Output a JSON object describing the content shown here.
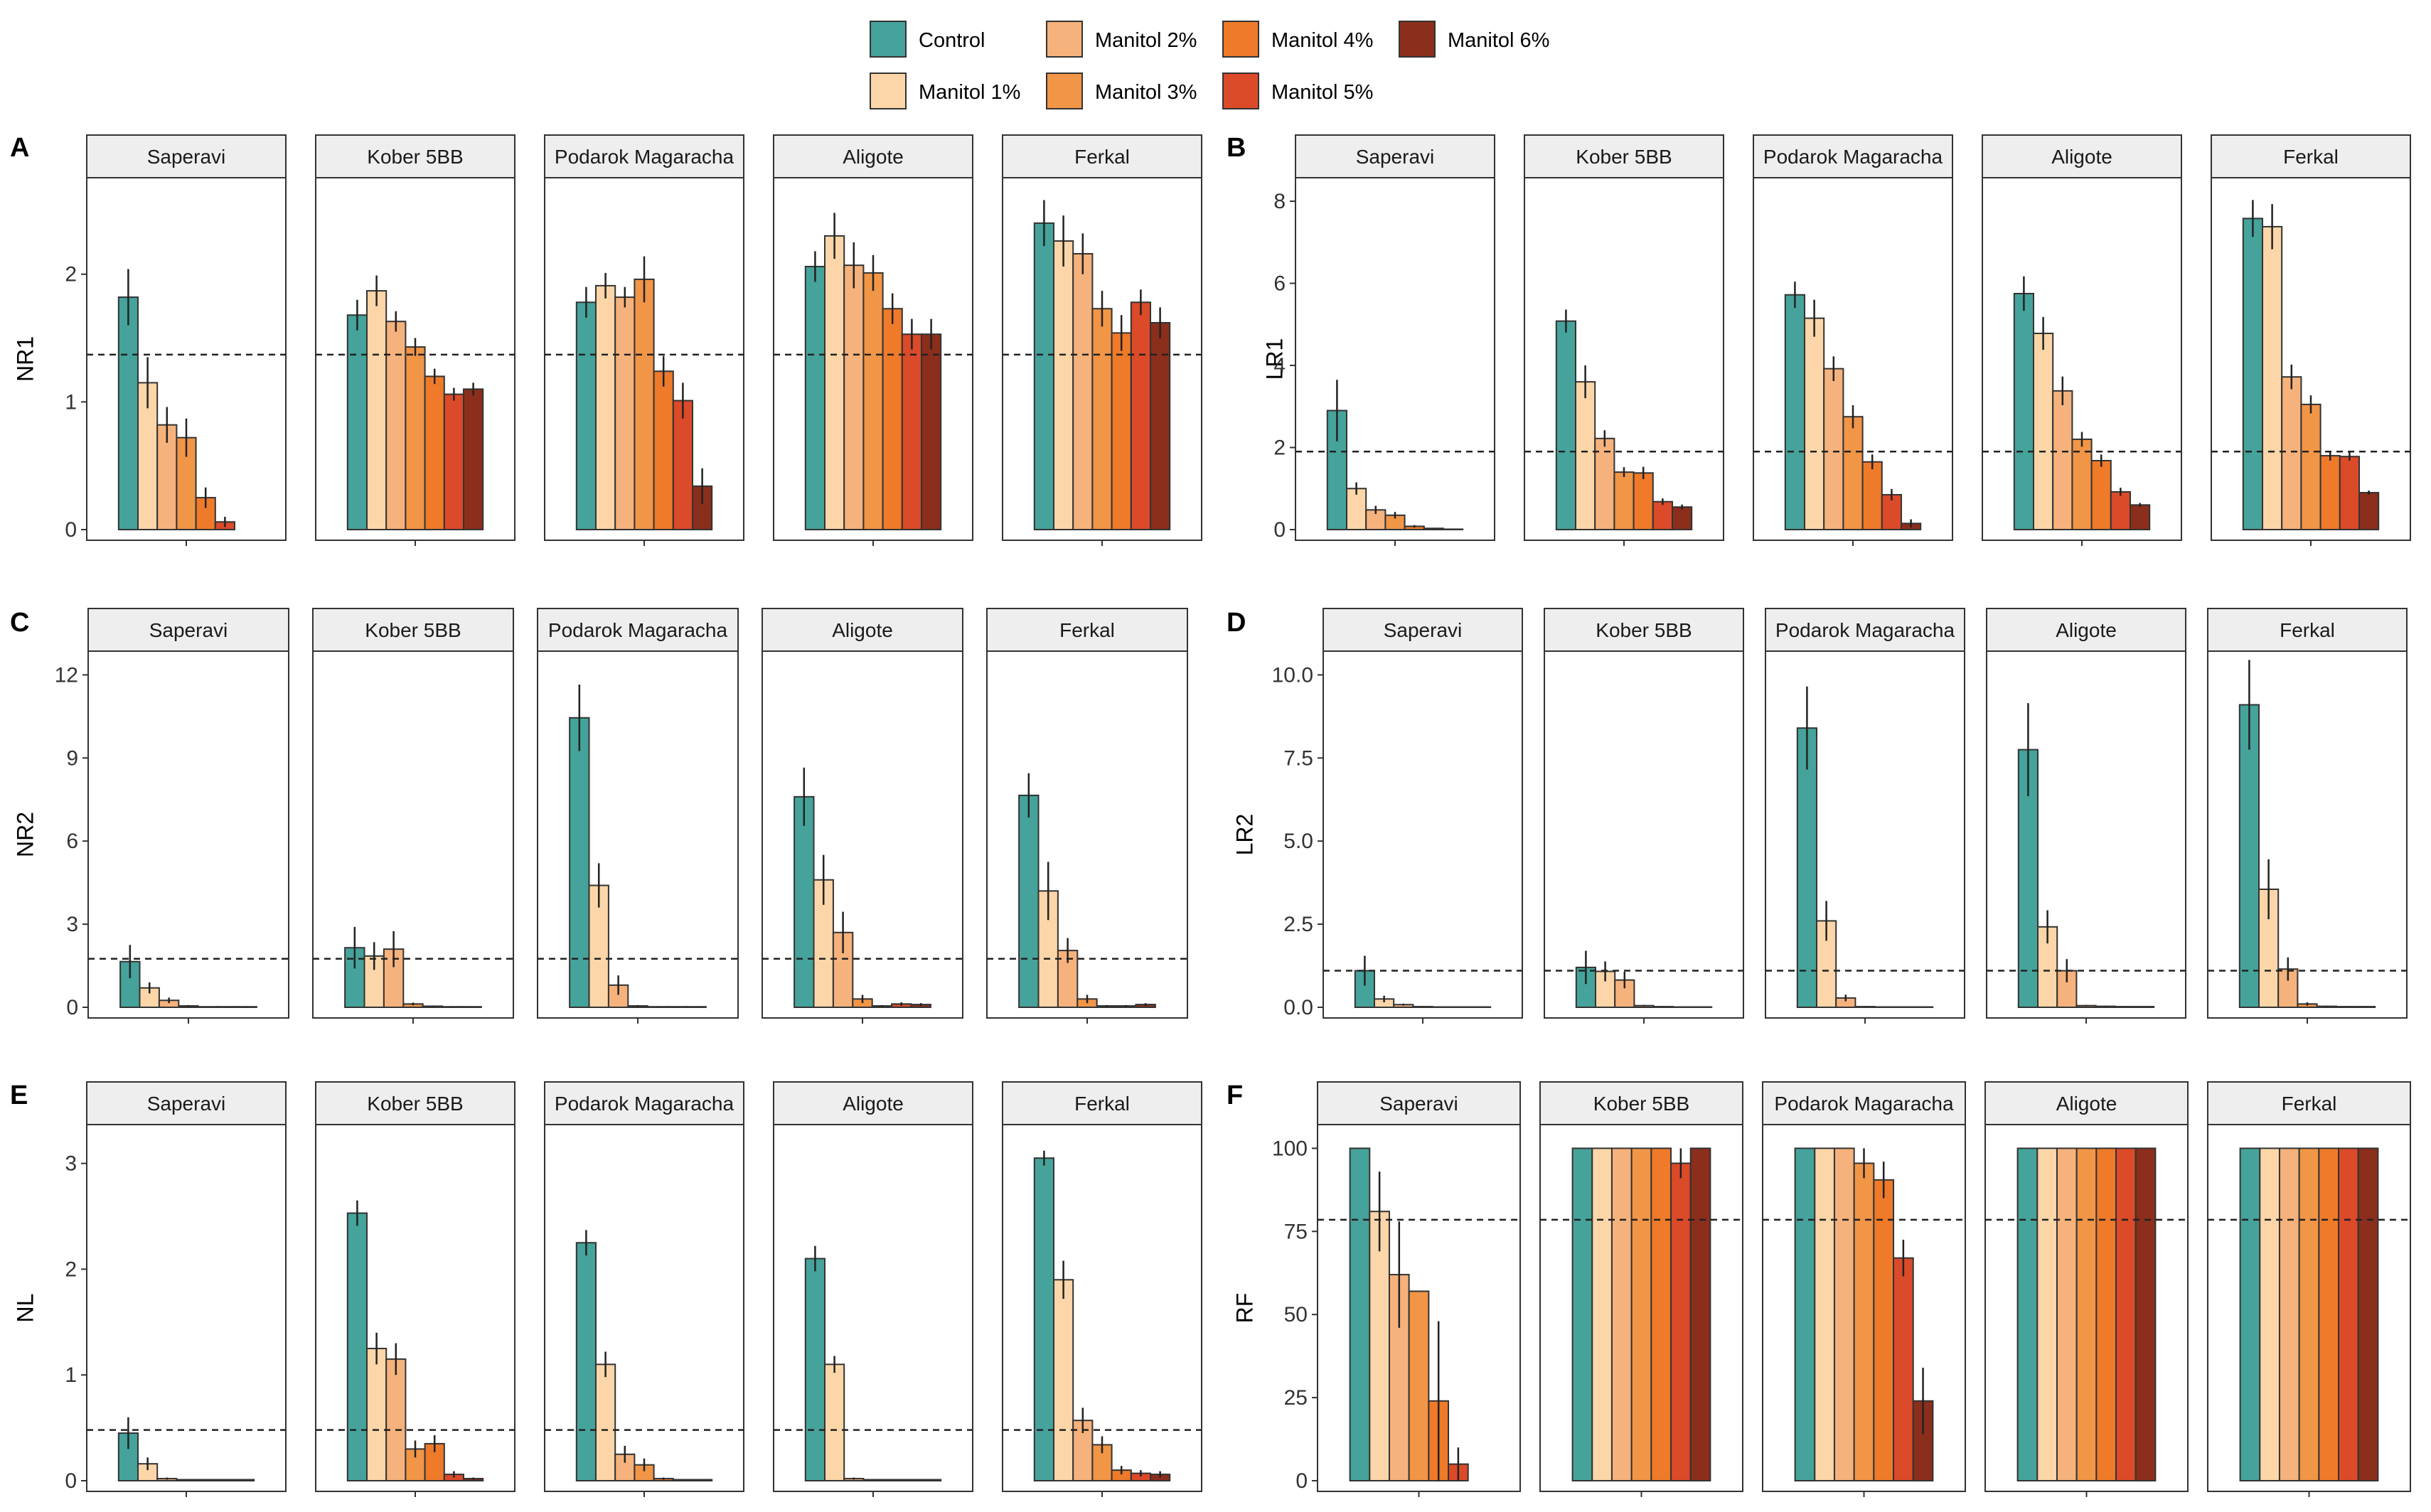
{
  "colors": {
    "Control": "#45a39b",
    "Manitol 1%": "#fcd6a8",
    "Manitol 2%": "#f6b27c",
    "Manitol 3%": "#f19547",
    "Manitol 4%": "#ee7a2a",
    "Manitol 5%": "#db4a29",
    "Manitol 6%": "#8b2e1c",
    "strip_bg": "#eeeeee",
    "border": "#333333"
  },
  "legend": {
    "items": [
      "Control",
      "Manitol 1%",
      "Manitol 2%",
      "Manitol 3%",
      "Manitol 4%",
      "Manitol 5%",
      "Manitol 6%"
    ],
    "placement": "top-center"
  },
  "chart_data": [
    {
      "type": "bar",
      "panel": "A",
      "ylabel": "NR1",
      "yticks": [
        "0",
        "1",
        "2"
      ],
      "ylim": [
        0,
        2.7
      ],
      "reference_line": 1.37,
      "facets": [
        "Saperavi",
        "Kober 5BB",
        "Podarok Magaracha",
        "Aligote",
        "Ferkal"
      ],
      "series_names": [
        "Control",
        "Manitol 1%",
        "Manitol 2%",
        "Manitol 3%",
        "Manitol 4%",
        "Manitol 5%",
        "Manitol 6%"
      ],
      "values": [
        [
          1.82,
          1.15,
          0.82,
          0.72,
          0.25,
          0.06,
          0.0
        ],
        [
          1.68,
          1.87,
          1.63,
          1.43,
          1.2,
          1.06,
          1.1
        ],
        [
          1.78,
          1.91,
          1.82,
          1.96,
          1.24,
          1.01,
          0.34
        ],
        [
          2.06,
          2.3,
          2.07,
          2.01,
          1.73,
          1.53,
          1.53
        ],
        [
          2.4,
          2.26,
          2.16,
          1.73,
          1.54,
          1.78,
          1.62
        ]
      ],
      "errors": [
        [
          0.22,
          0.2,
          0.14,
          0.15,
          0.08,
          0.04,
          0.0
        ],
        [
          0.12,
          0.12,
          0.08,
          0.07,
          0.06,
          0.05,
          0.05
        ],
        [
          0.12,
          0.1,
          0.08,
          0.18,
          0.12,
          0.14,
          0.14
        ],
        [
          0.12,
          0.18,
          0.18,
          0.14,
          0.12,
          0.12,
          0.12
        ],
        [
          0.18,
          0.2,
          0.16,
          0.14,
          0.14,
          0.1,
          0.12
        ]
      ]
    },
    {
      "type": "bar",
      "panel": "B",
      "ylabel": "LR1",
      "yticks": [
        "0",
        "2",
        "4",
        "6",
        "8"
      ],
      "ylim": [
        0,
        8.4
      ],
      "reference_line": 1.9,
      "facets": [
        "Saperavi",
        "Kober 5BB",
        "Podarok Magaracha",
        "Aligote",
        "Ferkal"
      ],
      "series_names": [
        "Control",
        "Manitol 1%",
        "Manitol 2%",
        "Manitol 3%",
        "Manitol 4%",
        "Manitol 5%",
        "Manitol 6%"
      ],
      "values": [
        [
          2.9,
          1.0,
          0.48,
          0.35,
          0.08,
          0.03,
          0.01
        ],
        [
          5.08,
          3.6,
          2.22,
          1.4,
          1.38,
          0.68,
          0.55
        ],
        [
          5.72,
          5.15,
          3.92,
          2.75,
          1.65,
          0.85,
          0.15
        ],
        [
          5.75,
          4.78,
          3.38,
          2.2,
          1.68,
          0.92,
          0.6
        ],
        [
          7.58,
          7.38,
          3.72,
          3.05,
          1.8,
          1.78,
          0.9
        ]
      ],
      "errors": [
        [
          0.75,
          0.15,
          0.1,
          0.08,
          0.03,
          0.01,
          0.0
        ],
        [
          0.28,
          0.4,
          0.2,
          0.12,
          0.15,
          0.08,
          0.06
        ],
        [
          0.32,
          0.45,
          0.3,
          0.28,
          0.18,
          0.14,
          0.1
        ],
        [
          0.42,
          0.4,
          0.35,
          0.18,
          0.15,
          0.1,
          0.05
        ],
        [
          0.45,
          0.55,
          0.3,
          0.22,
          0.12,
          0.1,
          0.05
        ]
      ]
    },
    {
      "type": "bar",
      "panel": "C",
      "ylabel": "NR2",
      "yticks": [
        "0",
        "3",
        "6",
        "9",
        "12"
      ],
      "ylim": [
        0,
        12.6
      ],
      "reference_line": 1.75,
      "facets": [
        "Saperavi",
        "Kober 5BB",
        "Podarok Magaracha",
        "Aligote",
        "Ferkal"
      ],
      "series_names": [
        "Control",
        "Manitol 1%",
        "Manitol 2%",
        "Manitol 3%",
        "Manitol 4%",
        "Manitol 5%",
        "Manitol 6%"
      ],
      "values": [
        [
          1.65,
          0.7,
          0.25,
          0.05,
          0.02,
          0.02,
          0.02
        ],
        [
          2.15,
          1.85,
          2.1,
          0.12,
          0.04,
          0.02,
          0.02
        ],
        [
          10.45,
          4.4,
          0.8,
          0.05,
          0.02,
          0.02,
          0.02
        ],
        [
          7.6,
          4.6,
          2.7,
          0.3,
          0.05,
          0.12,
          0.1
        ],
        [
          7.65,
          4.2,
          2.05,
          0.3,
          0.05,
          0.05,
          0.1
        ]
      ],
      "errors": [
        [
          0.6,
          0.2,
          0.1,
          0.03,
          0.01,
          0.01,
          0.01
        ],
        [
          0.75,
          0.5,
          0.65,
          0.05,
          0.02,
          0.01,
          0.01
        ],
        [
          1.2,
          0.8,
          0.35,
          0.03,
          0.01,
          0.01,
          0.01
        ],
        [
          1.05,
          0.9,
          0.75,
          0.15,
          0.03,
          0.06,
          0.05
        ],
        [
          0.8,
          1.05,
          0.45,
          0.15,
          0.03,
          0.03,
          0.05
        ]
      ]
    },
    {
      "type": "bar",
      "panel": "D",
      "ylabel": "LR2",
      "yticks": [
        "0.0",
        "2.5",
        "5.0",
        "7.5",
        "10.0"
      ],
      "ylim": [
        0,
        10.5
      ],
      "reference_line": 1.1,
      "facets": [
        "Saperavi",
        "Kober 5BB",
        "Podarok Magaracha",
        "Aligote",
        "Ferkal"
      ],
      "series_names": [
        "Control",
        "Manitol 1%",
        "Manitol 2%",
        "Manitol 3%",
        "Manitol 4%",
        "Manitol 5%",
        "Manitol 6%"
      ],
      "values": [
        [
          1.1,
          0.25,
          0.08,
          0.02,
          0.01,
          0.01,
          0.01
        ],
        [
          1.2,
          1.08,
          0.82,
          0.05,
          0.02,
          0.01,
          0.01
        ],
        [
          8.4,
          2.6,
          0.28,
          0.02,
          0.01,
          0.01,
          0.01
        ],
        [
          7.75,
          2.42,
          1.1,
          0.05,
          0.03,
          0.02,
          0.02
        ],
        [
          9.1,
          3.55,
          1.15,
          0.1,
          0.03,
          0.02,
          0.02
        ]
      ],
      "errors": [
        [
          0.45,
          0.1,
          0.03,
          0.01,
          0.0,
          0.0,
          0.0
        ],
        [
          0.5,
          0.3,
          0.25,
          0.02,
          0.01,
          0.0,
          0.0
        ],
        [
          1.25,
          0.6,
          0.1,
          0.01,
          0.0,
          0.0,
          0.0
        ],
        [
          1.4,
          0.5,
          0.35,
          0.02,
          0.01,
          0.01,
          0.01
        ],
        [
          1.35,
          0.9,
          0.35,
          0.05,
          0.01,
          0.01,
          0.01
        ]
      ]
    },
    {
      "type": "bar",
      "panel": "E",
      "ylabel": "NL",
      "yticks": [
        "0",
        "1",
        "2",
        "3"
      ],
      "ylim": [
        0,
        3.3
      ],
      "reference_line": 0.48,
      "facets": [
        "Saperavi",
        "Kober 5BB",
        "Podarok Magaracha",
        "Aligote",
        "Ferkal"
      ],
      "series_names": [
        "Control",
        "Manitol 1%",
        "Manitol 2%",
        "Manitol 3%",
        "Manitol 4%",
        "Manitol 5%",
        "Manitol 6%"
      ],
      "values": [
        [
          0.45,
          0.16,
          0.02,
          0.01,
          0.01,
          0.01,
          0.01
        ],
        [
          2.53,
          1.25,
          1.15,
          0.3,
          0.35,
          0.06,
          0.02
        ],
        [
          2.25,
          1.1,
          0.25,
          0.15,
          0.02,
          0.01,
          0.01
        ],
        [
          2.1,
          1.1,
          0.02,
          0.01,
          0.01,
          0.01,
          0.01
        ],
        [
          3.05,
          1.9,
          0.57,
          0.34,
          0.1,
          0.07,
          0.06
        ]
      ],
      "errors": [
        [
          0.15,
          0.06,
          0.01,
          0.0,
          0.0,
          0.0,
          0.0
        ],
        [
          0.12,
          0.15,
          0.15,
          0.08,
          0.08,
          0.03,
          0.01
        ],
        [
          0.12,
          0.12,
          0.08,
          0.06,
          0.01,
          0.0,
          0.0
        ],
        [
          0.12,
          0.08,
          0.01,
          0.0,
          0.0,
          0.0,
          0.0
        ],
        [
          0.07,
          0.18,
          0.12,
          0.08,
          0.04,
          0.03,
          0.03
        ]
      ]
    },
    {
      "type": "bar",
      "panel": "F",
      "ylabel": "RF",
      "yticks": [
        "0",
        "25",
        "50",
        "75",
        "100"
      ],
      "ylim": [
        0,
        105
      ],
      "reference_line": 78.5,
      "facets": [
        "Saperavi",
        "Kober 5BB",
        "Podarok Magaracha",
        "Aligote",
        "Ferkal"
      ],
      "series_names": [
        "Control",
        "Manitol 1%",
        "Manitol 2%",
        "Manitol 3%",
        "Manitol 4%",
        "Manitol 5%",
        "Manitol 6%"
      ],
      "values": [
        [
          100,
          81,
          62,
          57,
          24,
          5,
          0
        ],
        [
          100,
          100,
          100,
          100,
          100,
          95.5,
          100
        ],
        [
          100,
          100,
          100,
          95.5,
          90.5,
          67,
          24
        ],
        [
          100,
          100,
          100,
          100,
          100,
          100,
          100
        ],
        [
          100,
          100,
          100,
          100,
          100,
          100,
          100
        ]
      ],
      "errors": [
        [
          0,
          12,
          16,
          0,
          24,
          5,
          0
        ],
        [
          0,
          0,
          0,
          0,
          0,
          4.5,
          0
        ],
        [
          0,
          0,
          0,
          4.5,
          5.5,
          5.5,
          10
        ],
        [
          0,
          0,
          0,
          0,
          0,
          0,
          0
        ],
        [
          0,
          0,
          0,
          0,
          0,
          0,
          0
        ]
      ]
    }
  ]
}
